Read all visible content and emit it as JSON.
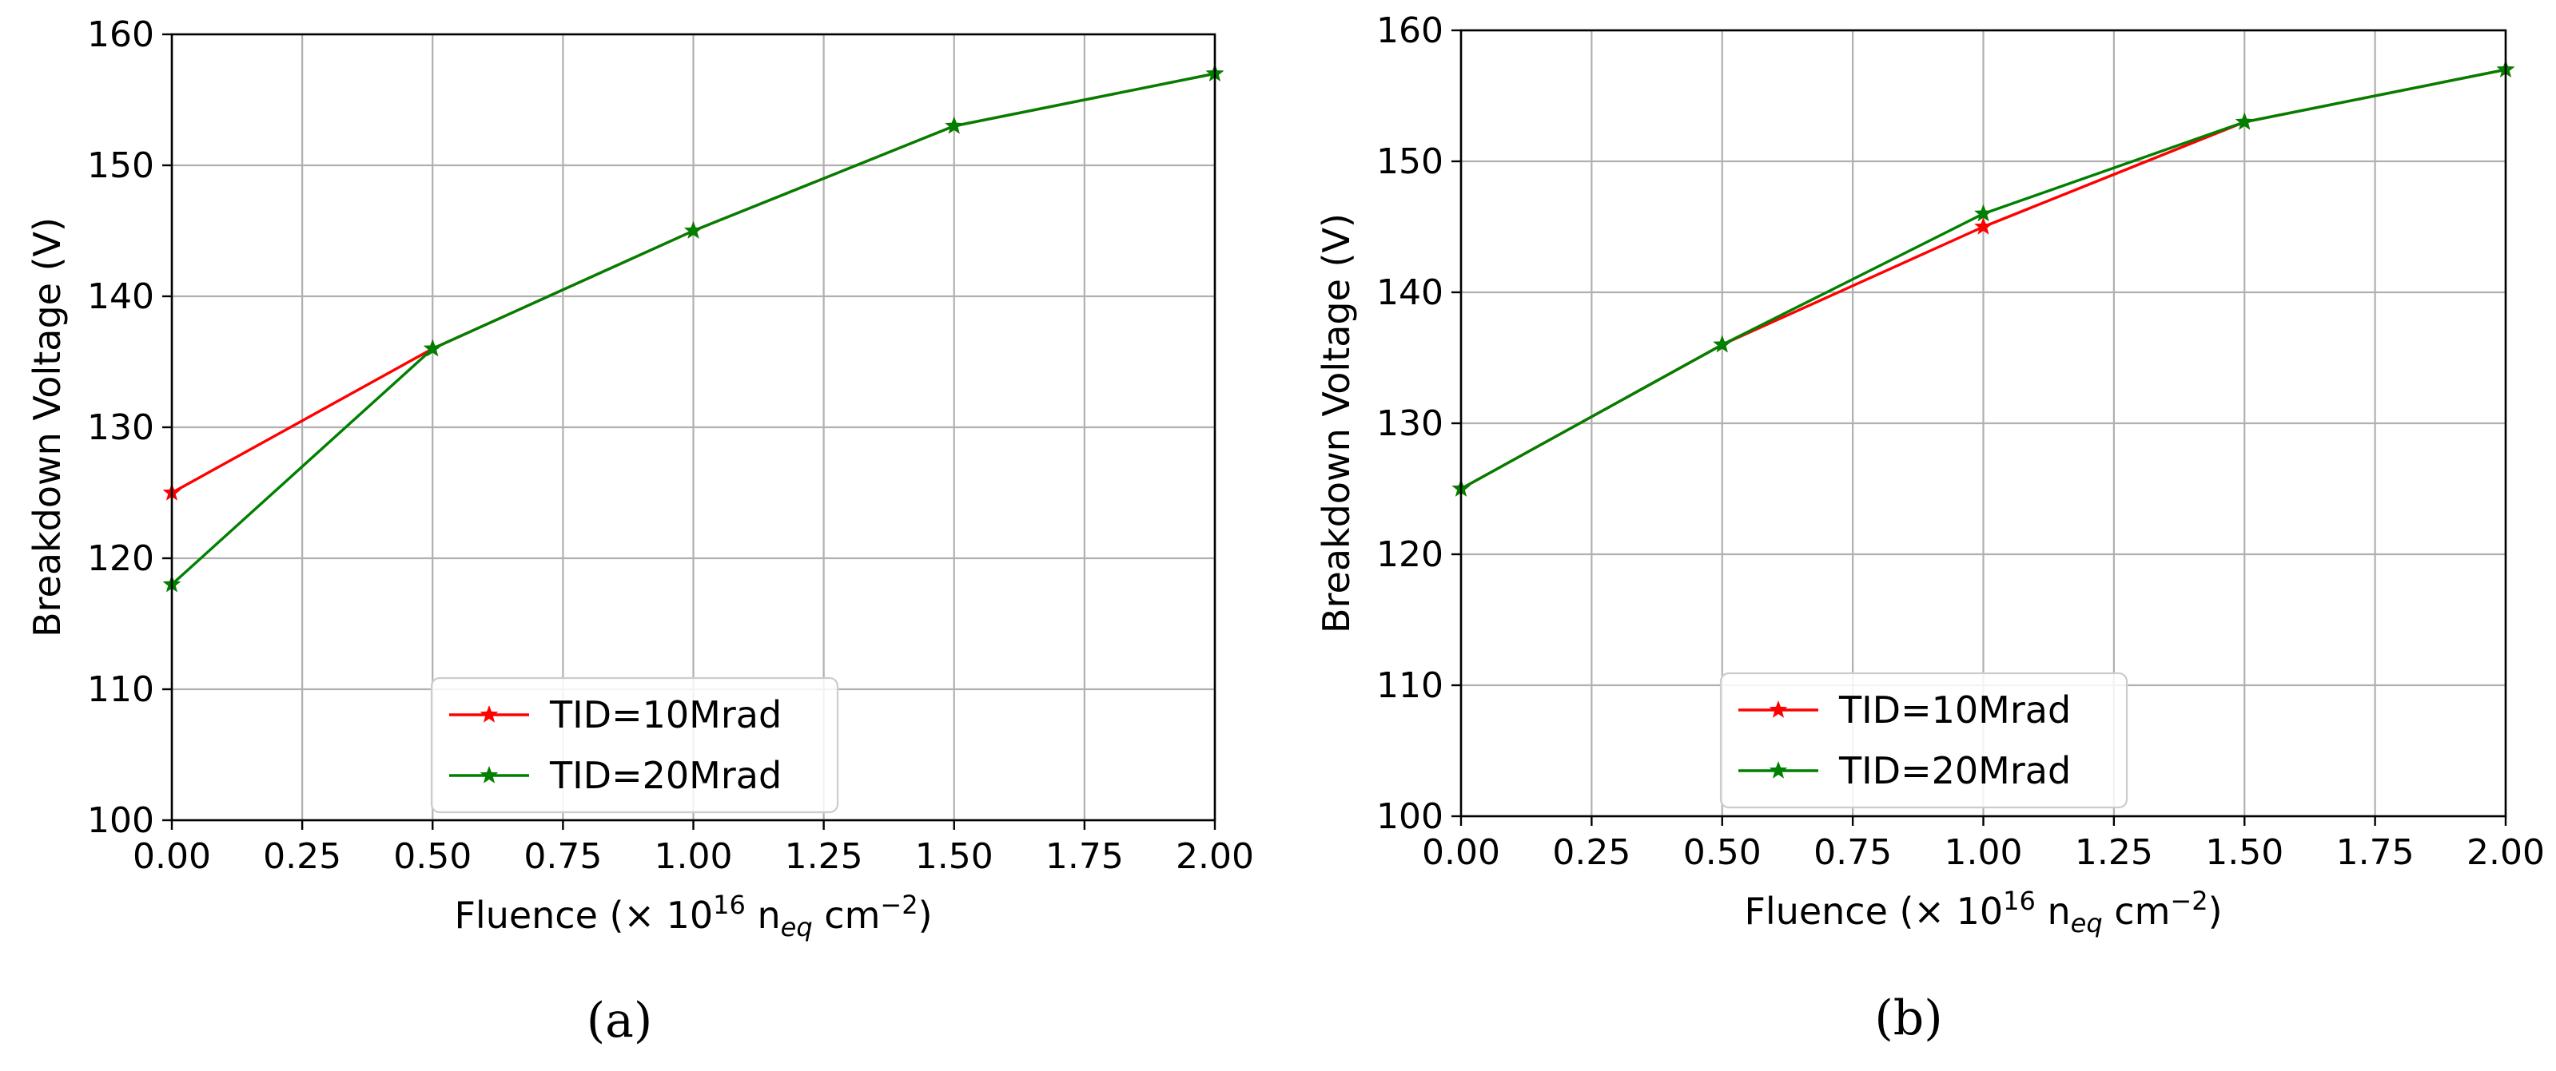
{
  "chart_data": [
    {
      "type": "line",
      "panel_label": "(a)",
      "xlabel": {
        "main": "Fluence (× 10",
        "sup": "16",
        "mid": " n",
        "sub": "eq",
        "unit": " cm",
        "unit_sup": "−2",
        "close": ")"
      },
      "ylabel": "Breakdown Voltage (V)",
      "xlim": [
        0.0,
        2.0
      ],
      "ylim": [
        100,
        160
      ],
      "x_ticks": [
        "0.00",
        "0.25",
        "0.50",
        "0.75",
        "1.00",
        "1.25",
        "1.50",
        "1.75",
        "2.00"
      ],
      "y_ticks": [
        "100",
        "110",
        "120",
        "130",
        "140",
        "150",
        "160"
      ],
      "grid": true,
      "legend_position": "lower-center",
      "series": [
        {
          "name": "TID=10Mrad",
          "color": "#ff0000",
          "marker": "star",
          "x": [
            0.0,
            0.5,
            1.0,
            1.5,
            2.0
          ],
          "y": [
            125,
            136,
            145,
            153,
            157
          ]
        },
        {
          "name": "TID=20Mrad",
          "color": "#008000",
          "marker": "star",
          "x": [
            0.0,
            0.5,
            1.0,
            1.5,
            2.0
          ],
          "y": [
            118,
            136,
            145,
            153,
            157
          ]
        }
      ]
    },
    {
      "type": "line",
      "panel_label": "(b)",
      "xlabel": {
        "main": "Fluence (× 10",
        "sup": "16",
        "mid": " n",
        "sub": "eq",
        "unit": " cm",
        "unit_sup": "−2",
        "close": ")"
      },
      "ylabel": "Breakdown Voltage (V)",
      "xlim": [
        0.0,
        2.0
      ],
      "ylim": [
        100,
        160
      ],
      "x_ticks": [
        "0.00",
        "0.25",
        "0.50",
        "0.75",
        "1.00",
        "1.25",
        "1.50",
        "1.75",
        "2.00"
      ],
      "y_ticks": [
        "100",
        "110",
        "120",
        "130",
        "140",
        "150",
        "160"
      ],
      "grid": true,
      "legend_position": "lower-left",
      "series": [
        {
          "name": "TID=10Mrad",
          "color": "#ff0000",
          "marker": "star",
          "x": [
            0.0,
            0.5,
            1.0,
            1.5,
            2.0
          ],
          "y": [
            125,
            136,
            145,
            153,
            157
          ]
        },
        {
          "name": "TID=20Mrad",
          "color": "#008000",
          "marker": "star",
          "x": [
            0.0,
            0.5,
            1.0,
            1.5,
            2.0
          ],
          "y": [
            125,
            136,
            146,
            153,
            157
          ]
        }
      ]
    }
  ]
}
